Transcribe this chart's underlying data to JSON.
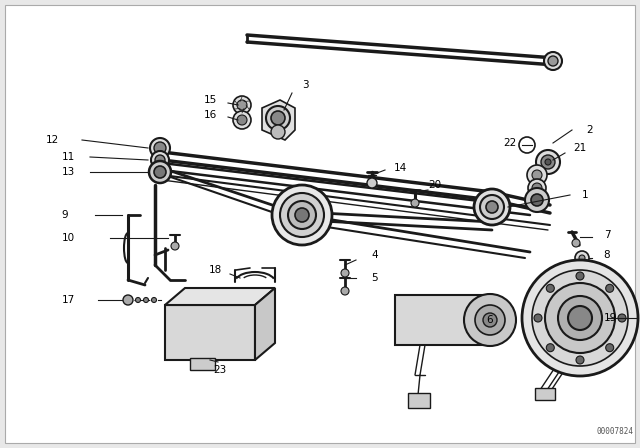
{
  "bg_color": "#e8e8e8",
  "diagram_bg": "#ffffff",
  "line_color": "#1a1a1a",
  "text_color": "#000000",
  "watermark": "00007824",
  "fig_w": 6.4,
  "fig_h": 4.48,
  "dpi": 100
}
